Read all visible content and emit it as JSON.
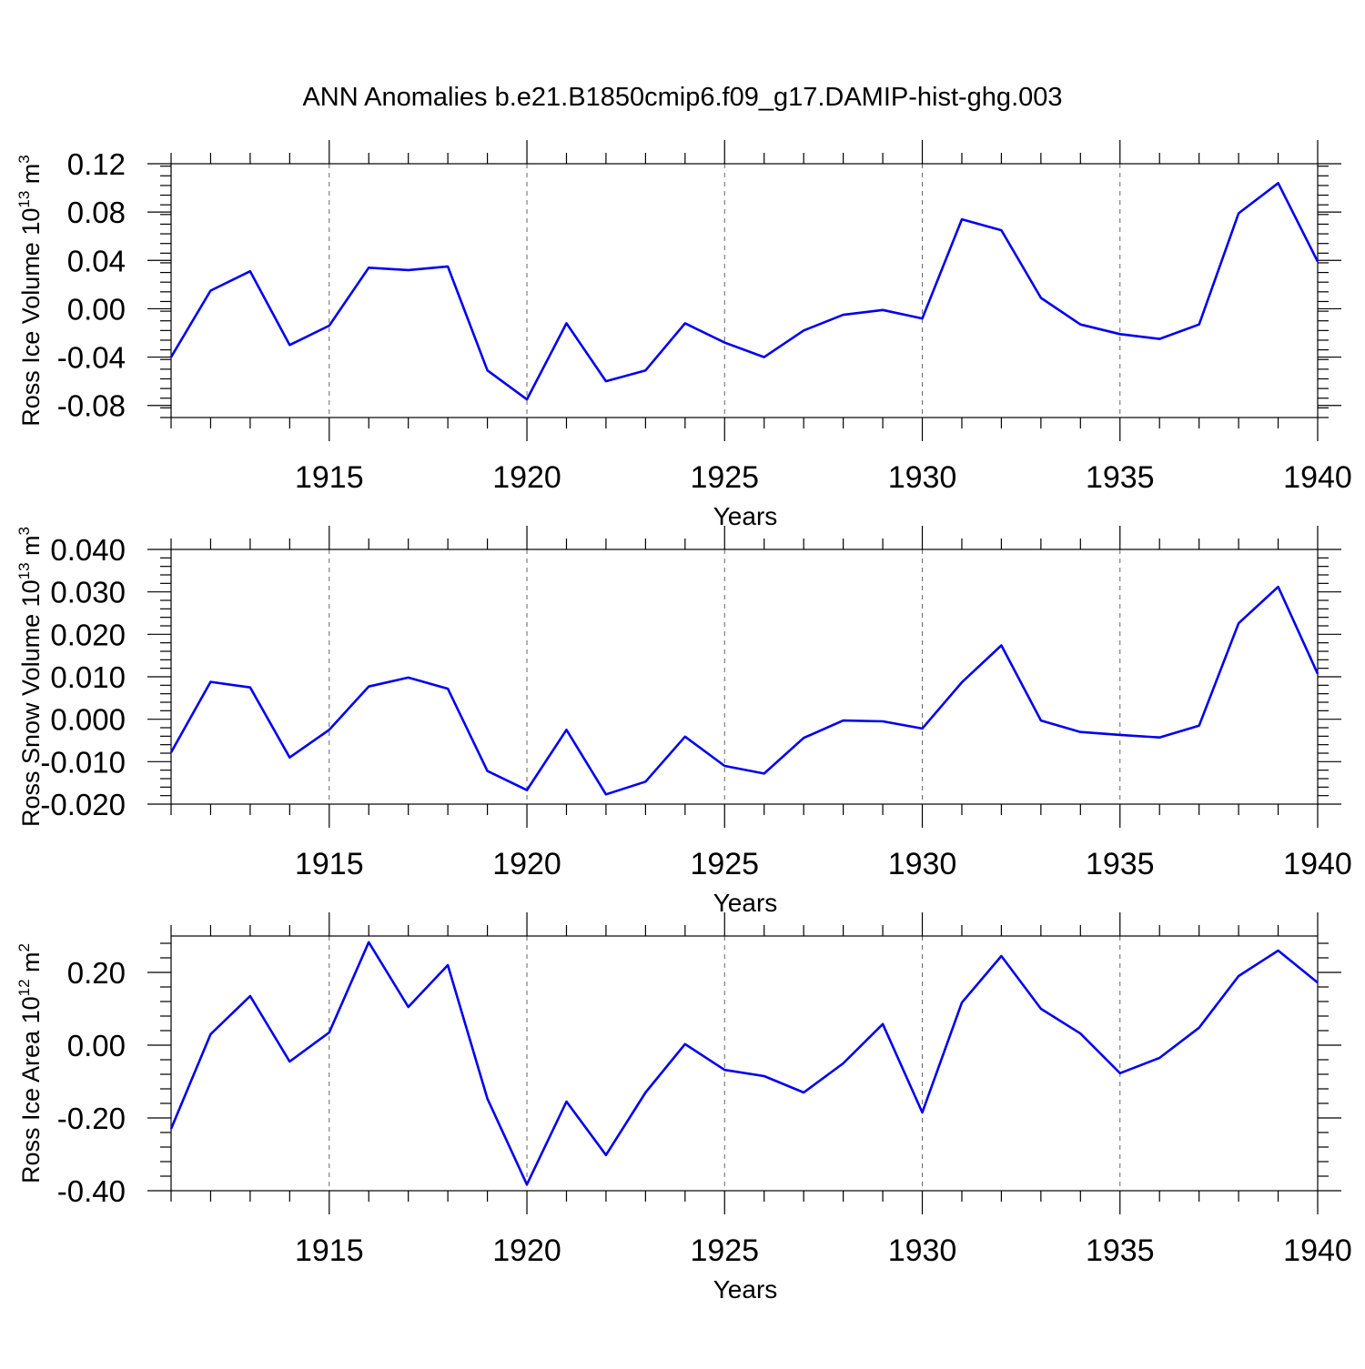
{
  "title": "ANN Anomalies b.e21.B1850cmip6.f09_g17.DAMIP-hist-ghg.003",
  "chart_data": [
    {
      "type": "line",
      "ylabel": "Ross Ice Volume 10",
      "ylabel_sup": "13",
      "ylabel_unit": " m",
      "ylabel_unit_sup": "3",
      "xlabel": "Years",
      "xlim": [
        1911,
        1940
      ],
      "ylim": [
        -0.09,
        0.12
      ],
      "yticks": [
        -0.08,
        -0.04,
        0.0,
        0.04,
        0.08,
        0.12
      ],
      "ytick_labels": [
        "-0.08",
        "-0.04",
        "0.00",
        "0.04",
        "0.08",
        "0.12"
      ],
      "xticks": [
        1915,
        1920,
        1925,
        1930,
        1935,
        1940
      ],
      "xtick_labels": [
        "1915",
        "1920",
        "1925",
        "1930",
        "1935",
        "1940"
      ],
      "grid": "vertical dashed at major x ticks",
      "x": [
        1911,
        1912,
        1913,
        1914,
        1915,
        1916,
        1917,
        1918,
        1919,
        1920,
        1921,
        1922,
        1923,
        1924,
        1925,
        1926,
        1927,
        1928,
        1929,
        1930,
        1931,
        1932,
        1933,
        1934,
        1935,
        1936,
        1937,
        1938,
        1939,
        1940
      ],
      "series": [
        {
          "color": "#0000ee",
          "values": [
            -0.04,
            0.015,
            0.031,
            -0.03,
            -0.014,
            0.034,
            0.032,
            0.035,
            -0.051,
            -0.075,
            -0.012,
            -0.06,
            -0.051,
            -0.012,
            -0.028,
            -0.04,
            -0.018,
            -0.005,
            -0.001,
            -0.008,
            0.074,
            0.065,
            0.009,
            -0.013,
            -0.021,
            -0.025,
            -0.013,
            0.079,
            0.104,
            0.039
          ]
        }
      ]
    },
    {
      "type": "line",
      "ylabel": "Ross Snow Volume 10",
      "ylabel_sup": "13",
      "ylabel_unit": " m",
      "ylabel_unit_sup": "3",
      "xlabel": "Years",
      "xlim": [
        1911,
        1940
      ],
      "ylim": [
        -0.02,
        0.04
      ],
      "yticks": [
        -0.02,
        -0.01,
        0.0,
        0.01,
        0.02,
        0.03,
        0.04
      ],
      "ytick_labels": [
        "-0.020",
        "-0.010",
        "0.000",
        "0.010",
        "0.020",
        "0.030",
        "0.040"
      ],
      "xticks": [
        1915,
        1920,
        1925,
        1930,
        1935,
        1940
      ],
      "xtick_labels": [
        "1915",
        "1920",
        "1925",
        "1930",
        "1935",
        "1940"
      ],
      "grid": "vertical dashed at major x ticks",
      "x": [
        1911,
        1912,
        1913,
        1914,
        1915,
        1916,
        1917,
        1918,
        1919,
        1920,
        1921,
        1922,
        1923,
        1924,
        1925,
        1926,
        1927,
        1928,
        1929,
        1930,
        1931,
        1932,
        1933,
        1934,
        1935,
        1936,
        1937,
        1938,
        1939,
        1940
      ],
      "series": [
        {
          "color": "#0000ee",
          "values": [
            -0.0078,
            0.0088,
            0.0075,
            -0.009,
            -0.0025,
            0.0077,
            0.0098,
            0.0072,
            -0.0122,
            -0.0167,
            -0.0025,
            -0.0177,
            -0.0147,
            -0.0041,
            -0.011,
            -0.0128,
            -0.0044,
            -0.0003,
            -0.0005,
            -0.0022,
            0.0087,
            0.0174,
            -0.0003,
            -0.003,
            -0.0037,
            -0.0043,
            -0.0015,
            0.0226,
            0.0312,
            0.0107
          ]
        }
      ]
    },
    {
      "type": "line",
      "ylabel": "Ross Ice Area 10",
      "ylabel_sup": "12",
      "ylabel_unit": " m",
      "ylabel_unit_sup": "2",
      "xlabel": "Years",
      "xlim": [
        1911,
        1940
      ],
      "ylim": [
        -0.4,
        0.3
      ],
      "yticks": [
        -0.4,
        -0.2,
        0.0,
        0.2
      ],
      "ytick_labels": [
        "-0.40",
        "-0.20",
        "0.00",
        "0.20"
      ],
      "xticks": [
        1915,
        1920,
        1925,
        1930,
        1935,
        1940
      ],
      "xtick_labels": [
        "1915",
        "1920",
        "1925",
        "1930",
        "1935",
        "1940"
      ],
      "grid": "vertical dashed at major x ticks",
      "x": [
        1911,
        1912,
        1913,
        1914,
        1915,
        1916,
        1917,
        1918,
        1919,
        1920,
        1921,
        1922,
        1923,
        1924,
        1925,
        1926,
        1927,
        1928,
        1929,
        1930,
        1931,
        1932,
        1933,
        1934,
        1935,
        1936,
        1937,
        1938,
        1939,
        1940
      ],
      "series": [
        {
          "color": "#0000ee",
          "values": [
            -0.23,
            0.03,
            0.135,
            -0.045,
            0.035,
            0.283,
            0.105,
            0.22,
            -0.147,
            -0.383,
            -0.155,
            -0.302,
            -0.13,
            0.003,
            -0.068,
            -0.085,
            -0.13,
            -0.05,
            0.058,
            -0.185,
            0.117,
            0.245,
            0.1,
            0.032,
            -0.077,
            -0.035,
            0.048,
            0.19,
            0.26,
            0.172
          ]
        }
      ]
    }
  ]
}
